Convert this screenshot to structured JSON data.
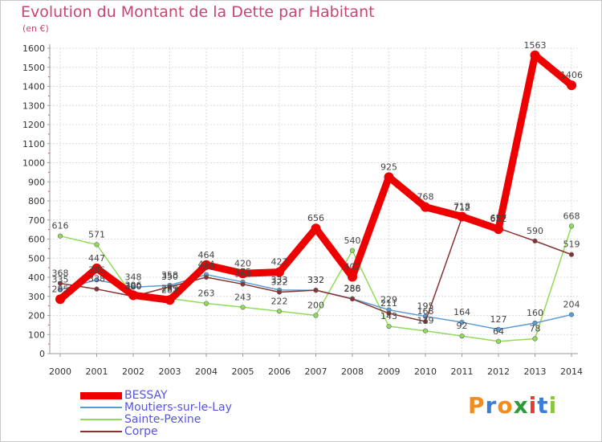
{
  "chart_data": {
    "type": "line",
    "title": "Evolution du Montant de la Dette par Habitant",
    "subtitle": "(en €)",
    "xlabel": "",
    "ylabel": "",
    "x": [
      "2000",
      "2001",
      "2002",
      "2003",
      "2004",
      "2005",
      "2006",
      "2007",
      "2008",
      "2009",
      "2010",
      "2011",
      "2012",
      "2013",
      "2014"
    ],
    "y_ticks": [
      0,
      100,
      200,
      300,
      400,
      500,
      600,
      700,
      800,
      900,
      1000,
      1100,
      1200,
      1300,
      1400,
      1500,
      1600
    ],
    "ylim": [
      0,
      1600
    ],
    "grid": true,
    "legend_position": "bottom-left",
    "series": [
      {
        "name": "BESSAY",
        "color": "#ee0000",
        "values": [
          285,
          447,
          306,
          281,
          464,
          420,
          427,
          656,
          402,
          925,
          768,
          718,
          652,
          1563,
          1406
        ]
      },
      {
        "name": "Moutiers-sur-le-Lay",
        "color": "#5b9bd5",
        "values": [
          335,
          386,
          348,
          358,
          414,
          375,
          333,
          332,
          288,
          229,
          195,
          164,
          127,
          160,
          204
        ]
      },
      {
        "name": "Sainte-Pexine",
        "color": "#8fdc5a",
        "values": [
          616,
          571,
          300,
          289,
          263,
          243,
          222,
          200,
          540,
          143,
          119,
          92,
          64,
          78,
          668
        ]
      },
      {
        "name": "Corpe",
        "color": "#883333",
        "values": [
          368,
          338,
          300,
          350,
          400,
          364,
          322,
          332,
          286,
          211,
          168,
          712,
          657,
          590,
          519
        ]
      }
    ],
    "value_labels": [
      [
        "285",
        "447",
        "306",
        "281",
        "464",
        "420",
        "427",
        "656",
        "402",
        "925",
        "768",
        "718",
        "652",
        "1563",
        "1406"
      ],
      [
        "335",
        "386",
        "348",
        "358",
        "414",
        "375",
        "333",
        "332",
        "288",
        "229",
        "195",
        "164",
        "127",
        "160",
        "204"
      ],
      [
        "616",
        "571",
        "300",
        "289",
        "263",
        "243",
        "222",
        "200",
        "540",
        "143",
        "119",
        "92",
        "64",
        "78",
        "668"
      ],
      [
        "368",
        "338",
        "300",
        "350",
        "400",
        "364",
        "322",
        "332",
        "286",
        "211",
        "168",
        "712",
        "657",
        "590",
        "519"
      ]
    ]
  },
  "logo": {
    "text": "Proxiti",
    "colors": [
      "#f28c1e",
      "#3a7fd5",
      "#f28c1e",
      "#2c9b3a",
      "#e63b2e",
      "#3a7fd5",
      "#8cc63f"
    ]
  }
}
